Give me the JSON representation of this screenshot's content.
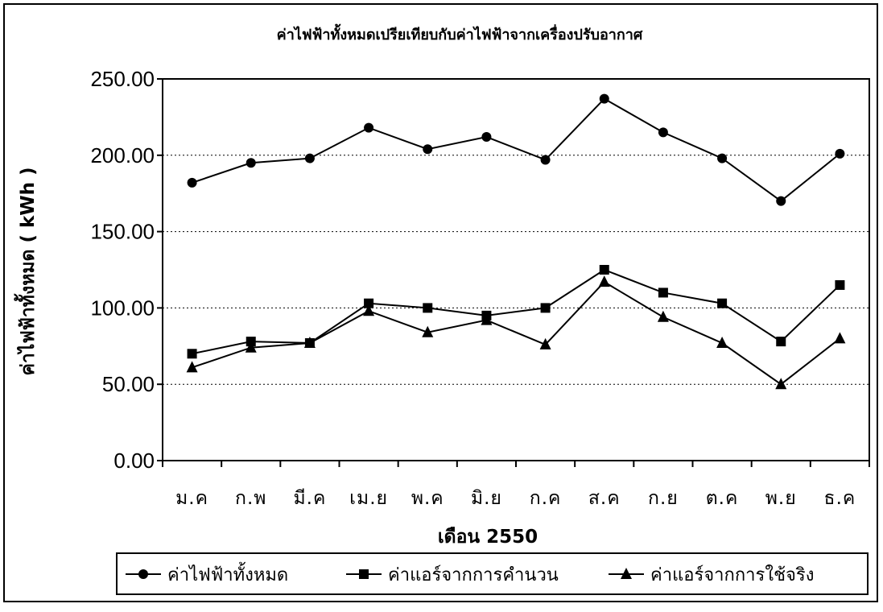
{
  "chart_data": {
    "type": "line",
    "title": "ค่าไฟฟ้าทั้งหมดเปรียเทียบกับค่าไฟฟ้าจากเครื่องปรับอากาศ",
    "xlabel": "เดือน 2550",
    "ylabel": "ค่าไฟฟ้าทั้งหมด ( kWh )",
    "ylim": [
      0,
      250
    ],
    "yticks": [
      "0.00",
      "50.00",
      "100.00",
      "150.00",
      "200.00",
      "250.00"
    ],
    "grid": "horizontal-dashed",
    "legend": "bottom",
    "categories": [
      "ม.ค",
      "ก.พ",
      "มี.ค",
      "เม.ย",
      "พ.ค",
      "มิ.ย",
      "ก.ค",
      "ส.ค",
      "ก.ย",
      "ต.ค",
      "พ.ย",
      "ธ.ค"
    ],
    "series": [
      {
        "name": "ค่าไฟฟ้าทั้งหมด",
        "marker": "circle",
        "values": [
          182,
          195,
          198,
          218,
          204,
          212,
          197,
          237,
          215,
          198,
          170,
          201
        ]
      },
      {
        "name": "ค่าแอร์จากการคำนวน",
        "marker": "square",
        "values": [
          70,
          78,
          77,
          103,
          100,
          95,
          100,
          125,
          110,
          103,
          78,
          115
        ]
      },
      {
        "name": "ค่าแอร์จากการใช้จริง",
        "marker": "triangle",
        "values": [
          61,
          74,
          77,
          98,
          84,
          92,
          76,
          117,
          94,
          77,
          50,
          80
        ]
      }
    ]
  }
}
